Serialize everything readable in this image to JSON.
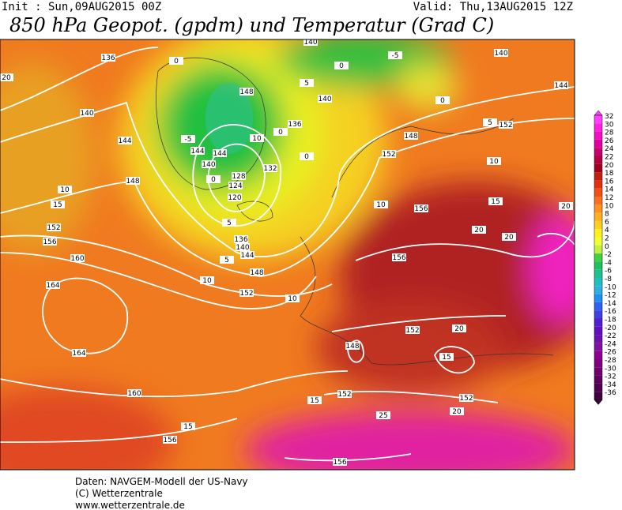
{
  "header": {
    "init": "Init : Sun,09AUG2015 00Z",
    "valid": "Valid: Thu,13AUG2015 12Z",
    "title": "850 hPa Geopot. (gpdm) und Temperatur (Grad C)"
  },
  "colorbar": {
    "labels": [
      "32",
      "30",
      "28",
      "26",
      "24",
      "22",
      "20",
      "18",
      "16",
      "14",
      "12",
      "10",
      "8",
      "6",
      "4",
      "2",
      "0",
      "-2",
      "-4",
      "-6",
      "-8",
      "-10",
      "-12",
      "-14",
      "-16",
      "-18",
      "-20",
      "-22",
      "-24",
      "-26",
      "-28",
      "-30",
      "-32",
      "-34",
      "-36"
    ]
  },
  "map": {
    "labels": [
      "136",
      "140",
      "144",
      "148",
      "152",
      "156",
      "160",
      "164",
      "164",
      "160",
      "156",
      "15",
      "10",
      "15",
      "20",
      "148",
      "144",
      "144",
      "140",
      "128",
      "124",
      "120",
      "136",
      "140",
      "144",
      "5",
      "148",
      "10",
      "152",
      "10",
      "132",
      "136",
      "140",
      "148",
      "152",
      "152",
      "144",
      "140",
      "-5",
      "0",
      "0",
      "5",
      "10",
      "10",
      "156",
      "15",
      "20",
      "20",
      "20",
      "156",
      "152",
      "20",
      "148",
      "15",
      "152",
      "15",
      "152",
      "20",
      "25",
      "156",
      "-5",
      "0",
      "0",
      "10",
      "5",
      "0",
      "5",
      "0",
      "140"
    ]
  },
  "footer": {
    "lines": [
      "Daten: NAVGEM-Modell der US-Navy",
      "(C) Wetterzentrale",
      "www.wetterzentrale.de"
    ]
  }
}
